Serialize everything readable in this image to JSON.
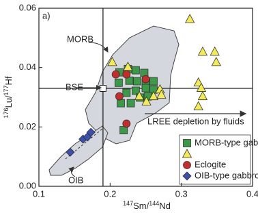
{
  "chart_data": {
    "type": "scatter",
    "panel_label": "a)",
    "xlabel": [
      "147",
      "Sm/",
      "144",
      "Nd"
    ],
    "ylabel": [
      "176",
      "Lu/",
      "177",
      "Hf"
    ],
    "xlim": [
      0.1,
      0.4
    ],
    "ylim": [
      0,
      0.06
    ],
    "xticks": [
      0.1,
      0.2,
      0.3,
      0.4
    ],
    "yticks": [
      {
        "value": 0,
        "label": "0.00"
      },
      0.02,
      0.04,
      0.06
    ],
    "reference_lines": {
      "x": 0.19,
      "y": 0.033
    },
    "annotations": {
      "morb": "MORB",
      "bse": "BSE",
      "oib": "OIB",
      "arrow": "LREE depletion by fluids"
    },
    "legend": "lower right",
    "series": [
      {
        "name": "MORB-type gabbro",
        "marker": "square",
        "color": "#3a9a48",
        "x": [
          0.213,
          0.225,
          0.236,
          0.248,
          0.212,
          0.227,
          0.238,
          0.25,
          0.261,
          0.223,
          0.236,
          0.25,
          0.261,
          0.215,
          0.229,
          0.242,
          0.253,
          0.219
        ],
        "y": [
          0.0384,
          0.0395,
          0.0391,
          0.0382,
          0.0349,
          0.0356,
          0.0354,
          0.0349,
          0.0354,
          0.0315,
          0.0322,
          0.0331,
          0.0326,
          0.028,
          0.028,
          0.0299,
          0.0303,
          0.0189
        ]
      },
      {
        "marker": "triangle",
        "color": "#f4ec4e",
        "x": [
          0.312,
          0.33,
          0.347,
          0.349,
          0.324,
          0.328,
          0.33,
          0.324,
          0.203,
          0.225,
          0.27,
          0.261,
          0.241,
          0.251,
          0.272
        ],
        "y": [
          0.0563,
          0.0453,
          0.0453,
          0.0418,
          0.0349,
          0.0331,
          0.0303,
          0.0269,
          0.0418,
          0.0402,
          0.0326,
          0.0303,
          0.0303,
          0.0285,
          0.0308
        ]
      },
      {
        "name": "Eclogite",
        "marker": "circle",
        "color": "#c92a2a",
        "x": [
          0.208,
          0.223,
          0.213,
          0.223,
          0.25
        ],
        "y": [
          0.0377,
          0.0377,
          0.0303,
          0.0211,
          0.0361
        ]
      },
      {
        "name": "OIB-type gabbro",
        "marker": "diamond",
        "color": "#3b4fae",
        "x": [
          0.144,
          0.162,
          0.168,
          0.173
        ],
        "y": [
          0.0115,
          0.0159,
          0.0166,
          0.0182
        ]
      }
    ]
  }
}
